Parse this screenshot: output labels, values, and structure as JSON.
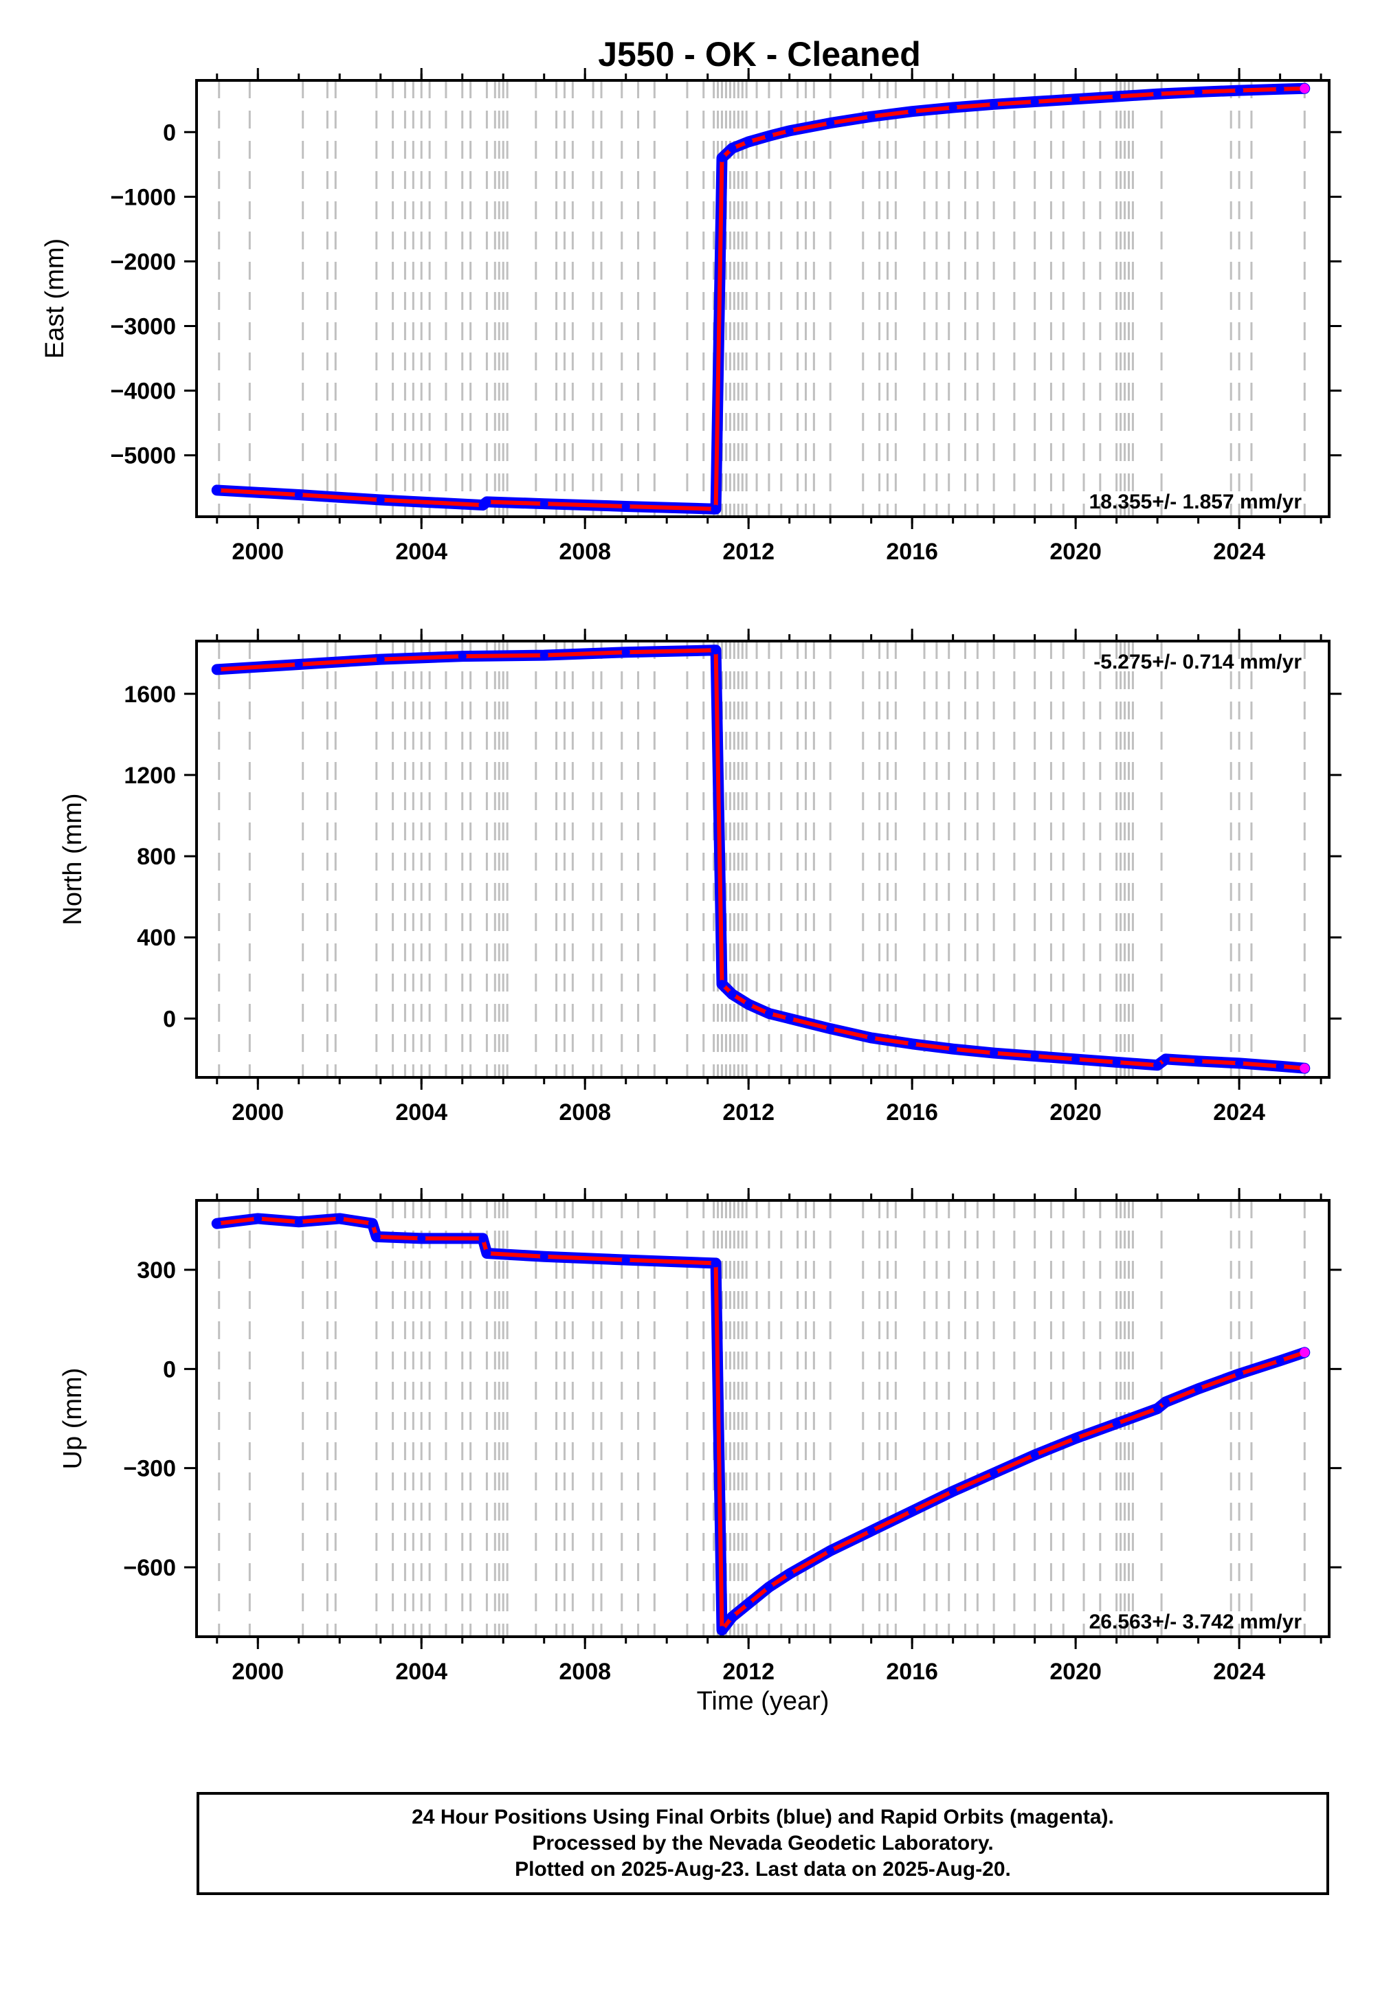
{
  "title": "J550  - OK - Cleaned",
  "colors": {
    "final_orbits": "#0000ff",
    "rapid_orbits": "#ff00ff",
    "model_fit": "#ff0000",
    "event_lines": "#c0c0c0",
    "frame": "#000000"
  },
  "footer": {
    "line1": "24 Hour Positions Using Final Orbits (blue) and Rapid Orbits (magenta).",
    "line2": "Processed by the Nevada Geodetic Laboratory.",
    "line3": "Plotted on 2025-Aug-23. Last data on 2025-Aug-20."
  },
  "chart_data": [
    {
      "type": "scatter",
      "panel": "east",
      "title": "J550  - OK - Cleaned",
      "xlabel": "",
      "ylabel": "East (mm)",
      "xlim": [
        1998.5,
        2026.2
      ],
      "ylim": [
        -5950,
        800
      ],
      "xticks": [
        2000,
        2004,
        2008,
        2012,
        2016,
        2020,
        2024
      ],
      "yticks": [
        0,
        -1000,
        -2000,
        -3000,
        -4000,
        -5000
      ],
      "grid": false,
      "rate_text": "18.355+/- 1.857 mm/yr",
      "rate_position": "bottom-right",
      "x": [
        1999.0,
        2001.0,
        2003.0,
        2005.5,
        2005.6,
        2007.0,
        2009.0,
        2011.18,
        2011.2,
        2011.35,
        2011.6,
        2012.0,
        2012.5,
        2013.0,
        2014.0,
        2015.0,
        2016.0,
        2017.0,
        2018.0,
        2019.0,
        2020.0,
        2021.0,
        2022.0,
        2023.0,
        2024.0,
        2025.0,
        2025.6
      ],
      "series": [
        {
          "values": [
            -5540,
            -5610,
            -5690,
            -5770,
            -5720,
            -5750,
            -5790,
            -5830,
            -5830,
            -400,
            -250,
            -150,
            -60,
            20,
            140,
            240,
            320,
            380,
            430,
            470,
            510,
            550,
            590,
            620,
            645,
            665,
            675
          ]
        }
      ]
    },
    {
      "type": "scatter",
      "panel": "north",
      "xlabel": "",
      "ylabel": "North (mm)",
      "xlim": [
        1998.5,
        2026.2
      ],
      "ylim": [
        -290,
        1860
      ],
      "xticks": [
        2000,
        2004,
        2008,
        2012,
        2016,
        2020,
        2024
      ],
      "yticks": [
        1600,
        1200,
        800,
        400,
        0
      ],
      "grid": false,
      "rate_text": "-5.275+/- 0.714 mm/yr",
      "rate_position": "top-right",
      "x": [
        1999.0,
        2001.0,
        2003.0,
        2005.0,
        2007.0,
        2009.0,
        2011.18,
        2011.2,
        2011.35,
        2011.6,
        2012.0,
        2012.5,
        2013.0,
        2014.0,
        2015.0,
        2016.0,
        2017.0,
        2018.0,
        2019.0,
        2020.0,
        2021.0,
        2022.0,
        2022.2,
        2023.0,
        2024.0,
        2025.0,
        2025.6
      ],
      "series": [
        {
          "values": [
            1720,
            1745,
            1770,
            1785,
            1790,
            1805,
            1815,
            1815,
            170,
            120,
            70,
            25,
            0,
            -50,
            -95,
            -125,
            -150,
            -170,
            -185,
            -200,
            -215,
            -230,
            -200,
            -210,
            -220,
            -235,
            -245
          ]
        }
      ]
    },
    {
      "type": "scatter",
      "panel": "up",
      "xlabel": "Time (year)",
      "ylabel": "Up (mm)",
      "xlim": [
        1998.5,
        2026.2
      ],
      "ylim": [
        -810,
        510
      ],
      "xticks": [
        2000,
        2004,
        2008,
        2012,
        2016,
        2020,
        2024
      ],
      "yticks": [
        300,
        0,
        -300,
        -600
      ],
      "grid": false,
      "rate_text": "26.563+/- 3.742 mm/yr",
      "rate_position": "bottom-right",
      "x": [
        1999.0,
        2000.0,
        2001.0,
        2002.0,
        2002.8,
        2002.9,
        2004.0,
        2005.5,
        2005.6,
        2007.0,
        2009.0,
        2011.18,
        2011.2,
        2011.35,
        2011.6,
        2012.0,
        2012.5,
        2013.0,
        2014.0,
        2015.0,
        2016.0,
        2017.0,
        2018.0,
        2019.0,
        2020.0,
        2021.0,
        2022.0,
        2022.2,
        2023.0,
        2024.0,
        2025.0,
        2025.6
      ],
      "series": [
        {
          "values": [
            440,
            455,
            445,
            455,
            440,
            400,
            395,
            395,
            350,
            340,
            330,
            320,
            320,
            -790,
            -750,
            -710,
            -660,
            -620,
            -550,
            -490,
            -430,
            -370,
            -315,
            -260,
            -210,
            -165,
            -120,
            -100,
            -60,
            -15,
            25,
            50
          ]
        }
      ]
    }
  ],
  "event_years": [
    1999.05,
    1999.8,
    2001.1,
    2001.7,
    2001.9,
    2002.9,
    2003.3,
    2003.6,
    2003.8,
    2004.0,
    2004.2,
    2004.6,
    2005.0,
    2005.2,
    2005.6,
    2005.8,
    2005.9,
    2006.0,
    2006.1,
    2006.8,
    2007.3,
    2007.5,
    2007.7,
    2008.2,
    2008.4,
    2008.9,
    2009.3,
    2009.7,
    2010.5,
    2010.9,
    2011.15,
    2011.25,
    2011.35,
    2011.45,
    2011.55,
    2011.65,
    2011.75,
    2011.85,
    2011.95,
    2012.2,
    2012.5,
    2012.8,
    2013.2,
    2013.4,
    2013.6,
    2014.0,
    2014.8,
    2015.2,
    2015.4,
    2015.6,
    2016.3,
    2016.6,
    2016.9,
    2017.3,
    2017.6,
    2018.0,
    2018.5,
    2019.0,
    2019.4,
    2019.7,
    2020.2,
    2020.6,
    2021.0,
    2021.1,
    2021.2,
    2021.3,
    2021.4,
    2022.1,
    2023.8,
    2024.0,
    2024.3,
    2025.6
  ]
}
